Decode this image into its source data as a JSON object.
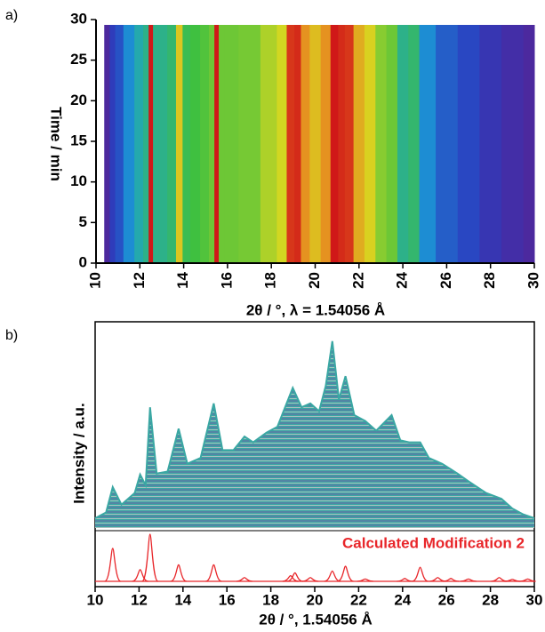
{
  "chart_data": [
    {
      "type": "heatmap",
      "panel": "a)",
      "xlabel": "2θ / °, λ = 1.54056 Å",
      "ylabel": "Time / min",
      "x": [
        10.5,
        10.75,
        11,
        11.5,
        12,
        12.3,
        12.5,
        12.7,
        13,
        13.5,
        13.8,
        14.1,
        14.5,
        15,
        15.3,
        15.5,
        15.7,
        16,
        17,
        18,
        18.5,
        18.9,
        19.2,
        19.5,
        20,
        20.5,
        20.9,
        21.2,
        21.5,
        22,
        22.5,
        23,
        23.5,
        24,
        24.5,
        25,
        26,
        27,
        28,
        29,
        30
      ],
      "values": [
        0.05,
        0.15,
        0.2,
        0.3,
        0.38,
        0.42,
        1.0,
        0.42,
        0.42,
        0.45,
        0.7,
        0.48,
        0.5,
        0.52,
        0.55,
        1.0,
        0.55,
        0.55,
        0.56,
        0.62,
        0.66,
        0.95,
        0.97,
        0.8,
        0.72,
        0.8,
        1.0,
        0.97,
        0.95,
        0.75,
        0.68,
        0.58,
        0.55,
        0.42,
        0.45,
        0.3,
        0.22,
        0.18,
        0.12,
        0.08,
        0.05
      ],
      "colors": [
        "#5a1f8f",
        "#2a3fc0",
        "#1aa0d8",
        "#3fc040",
        "#d8d820",
        "#e88020",
        "#d01818"
      ],
      "xlim": [
        10,
        30
      ],
      "xticks": [
        10,
        12,
        14,
        16,
        18,
        20,
        22,
        24,
        26,
        28,
        30
      ],
      "ylim": [
        0,
        30
      ],
      "yticks": [
        0,
        5,
        10,
        15,
        20,
        25,
        30
      ]
    },
    {
      "type": "waterfall",
      "panel": "b)",
      "xlabel": "2θ / °, 1.54056 Å",
      "ylabel": "Intensity / a.u.",
      "xlim": [
        10,
        30
      ],
      "xticks": [
        10,
        12,
        14,
        16,
        18,
        20,
        22,
        24,
        26,
        28,
        30
      ],
      "ylim": [
        0,
        100
      ],
      "series": [
        {
          "color": "#3aa7a3",
          "x": [
            10,
            10.5,
            10.8,
            11.2,
            11.8,
            12.05,
            12.3,
            12.5,
            12.8,
            13.3,
            13.8,
            14.2,
            14.8,
            15.4,
            15.8,
            16.3,
            16.8,
            17.2,
            17.8,
            18.3,
            19.0,
            19.4,
            19.8,
            20.2,
            20.5,
            20.8,
            21.1,
            21.4,
            21.8,
            22.3,
            22.8,
            23.5,
            23.9,
            24.3,
            24.8,
            25.2,
            25.8,
            26.5,
            27,
            27.8,
            28.5,
            29,
            29.5,
            30
          ],
          "values": [
            5,
            8,
            21,
            12,
            18,
            27.5,
            22,
            62,
            28,
            29,
            51,
            33,
            36,
            64,
            40,
            40,
            47,
            44,
            49,
            52,
            72,
            62,
            64,
            60,
            73,
            96,
            66,
            78,
            58,
            55,
            50,
            58,
            45,
            44,
            44,
            36,
            33,
            28,
            24,
            18,
            15,
            10,
            7,
            5
          ]
        },
        {
          "name": "Calculated Modification 2",
          "color": "#e8262a",
          "x": [
            10.8,
            12.05,
            12.5,
            13.8,
            15.4,
            16.8,
            18.9,
            19.1,
            19.8,
            20.8,
            21.4,
            22.3,
            24.1,
            24.8,
            25.6,
            26.2,
            27.0,
            28.4,
            29.0,
            29.7
          ],
          "values": [
            70,
            25,
            100,
            35,
            35,
            8,
            12,
            18,
            8,
            22,
            32,
            5,
            6,
            30,
            8,
            6,
            5,
            8,
            4,
            5
          ]
        }
      ]
    }
  ]
}
